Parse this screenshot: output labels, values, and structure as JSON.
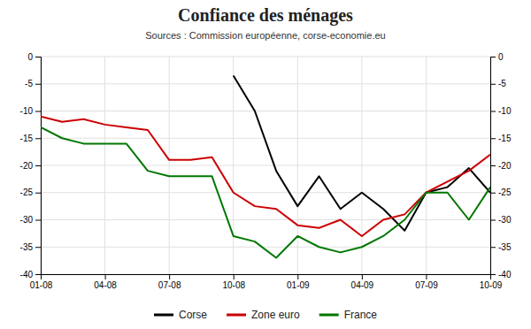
{
  "chart_data": {
    "type": "line",
    "title": "Confiance des ménages",
    "subtitle": "Sources : Commission européenne, corse-economie.eu",
    "categories": [
      "01-08",
      null,
      null,
      "04-08",
      null,
      null,
      "07-08",
      null,
      null,
      "10-08",
      null,
      null,
      "01-09",
      null,
      null,
      "04-09",
      null,
      null,
      "07-09",
      null,
      null,
      "10-09"
    ],
    "series": [
      {
        "name": "Corse",
        "color": "#000000",
        "values": [
          null,
          null,
          null,
          null,
          null,
          null,
          null,
          null,
          null,
          -3.5,
          -10,
          -21,
          -27.5,
          -22,
          -28,
          -25,
          -28,
          -32,
          -25,
          -24,
          -20.5,
          -25
        ]
      },
      {
        "name": "Zone euro",
        "color": "#cc0000",
        "values": [
          -11,
          -12,
          -11.5,
          -12.5,
          -13,
          -13.5,
          -19,
          -19,
          -18.5,
          -25,
          -27.5,
          -28,
          -31,
          -31.5,
          -30,
          -33,
          -30,
          -29,
          -25,
          -23,
          -21,
          -18
        ]
      },
      {
        "name": "France",
        "color": "#007700",
        "values": [
          -13,
          -15,
          -16,
          -16,
          -16,
          -21,
          -22,
          -22,
          -22,
          -33,
          -34,
          -37,
          -33,
          -35,
          -36,
          -35,
          -33,
          -30,
          -25,
          -25,
          -30,
          -24
        ]
      }
    ],
    "ylim": [
      -40,
      0
    ],
    "yticks": [
      0,
      -5,
      -10,
      -15,
      -20,
      -25,
      -30,
      -35,
      -40
    ],
    "y2lim": [
      -40,
      0
    ],
    "y2ticks": [
      0,
      -5,
      -10,
      -15,
      -20,
      -25,
      -30,
      -35,
      -40
    ],
    "grid": true,
    "legend": "bottom"
  }
}
